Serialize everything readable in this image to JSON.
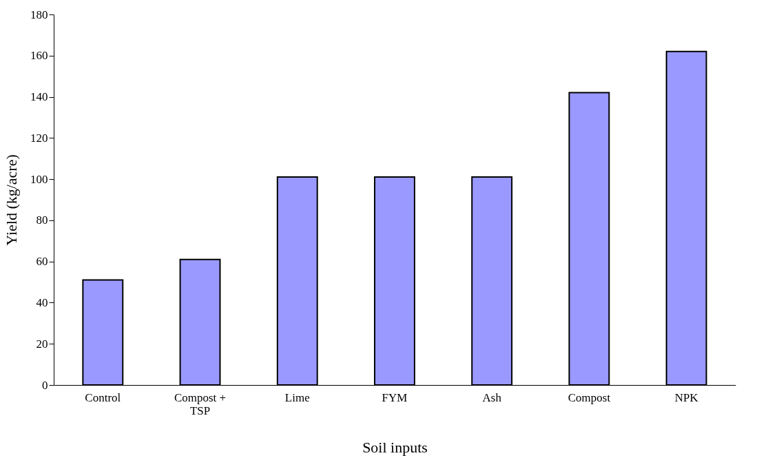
{
  "chart_data": {
    "type": "bar",
    "xlabel": "Soil inputs",
    "ylabel": "Yield (kg/acre)",
    "categories": [
      "Control",
      "Compost + TSP",
      "Lime",
      "FYM",
      "Ash",
      "Compost",
      "NPK"
    ],
    "values": [
      51,
      61,
      101,
      101,
      101,
      142,
      162
    ],
    "color": "#9999ff",
    "ylim": [
      0,
      180
    ],
    "yticks": [
      0,
      20,
      40,
      60,
      80,
      100,
      120,
      140,
      160,
      180
    ],
    "grid": false
  }
}
